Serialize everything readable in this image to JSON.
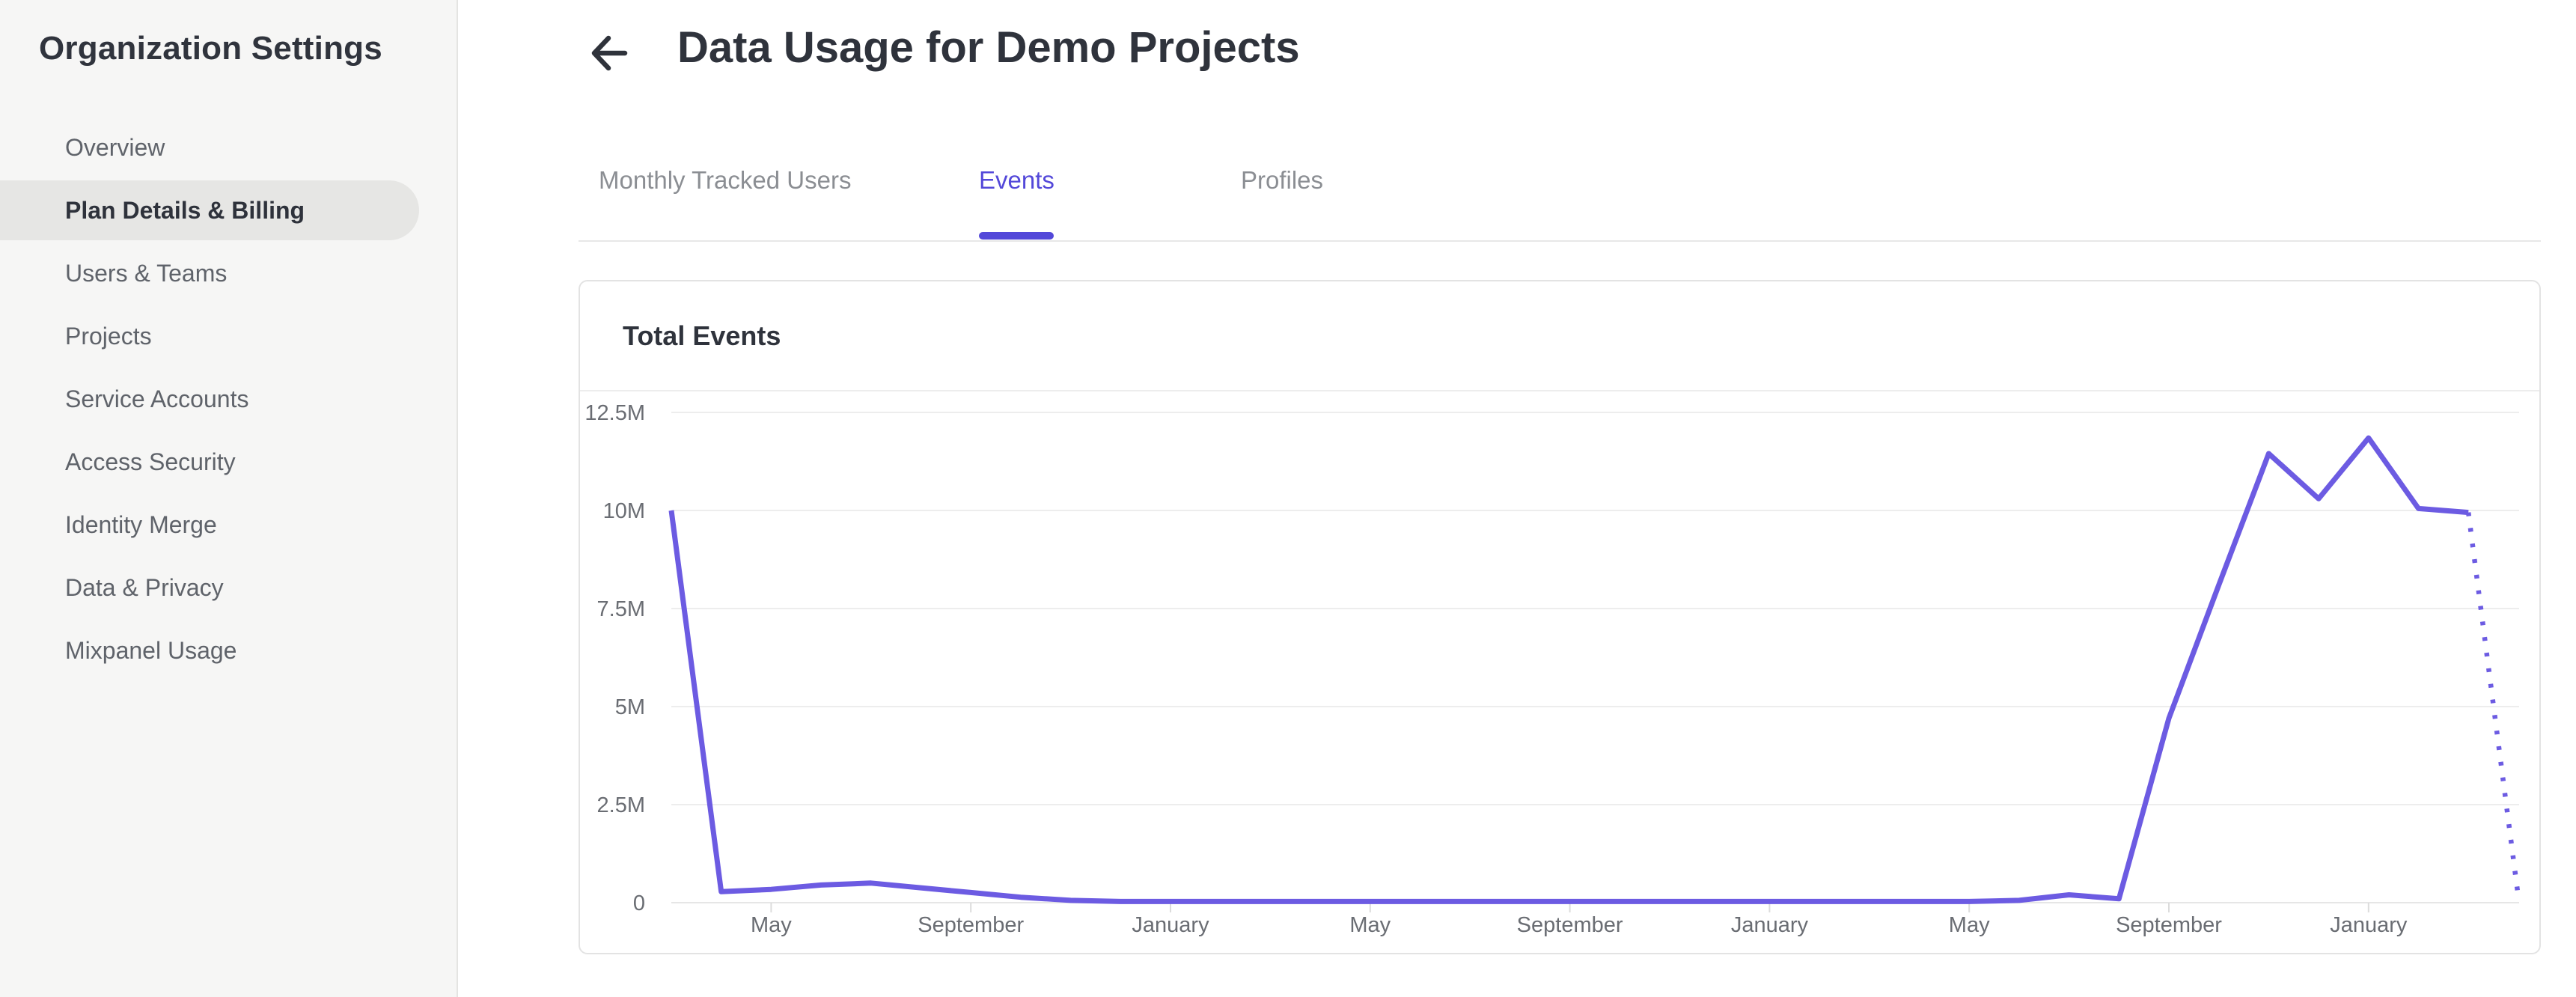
{
  "sidebar": {
    "title": "Organization Settings",
    "items": [
      {
        "label": "Overview",
        "selected": false
      },
      {
        "label": "Plan Details & Billing",
        "selected": true
      },
      {
        "label": "Users & Teams",
        "selected": false
      },
      {
        "label": "Projects",
        "selected": false
      },
      {
        "label": "Service Accounts",
        "selected": false
      },
      {
        "label": "Access Security",
        "selected": false
      },
      {
        "label": "Identity Merge",
        "selected": false
      },
      {
        "label": "Data & Privacy",
        "selected": false
      },
      {
        "label": "Mixpanel Usage",
        "selected": false
      }
    ]
  },
  "header": {
    "back_icon": "left-arrow",
    "title": "Data Usage for Demo Projects"
  },
  "tabs": [
    {
      "label": "Monthly Tracked Users",
      "active": false
    },
    {
      "label": "Events",
      "active": true
    },
    {
      "label": "Profiles",
      "active": false
    }
  ],
  "card": {
    "title": "Total Events"
  },
  "colors": {
    "accent_purple": "#5348d9",
    "chart_line": "#6c5be2",
    "sidebar_bg": "#f6f6f5",
    "selected_pill": "#e6e6e4",
    "dark_text": "#2f333c",
    "gray_text": "#5f636a",
    "tab_inactive": "#8b8e93",
    "gridline": "#ededed",
    "axis_label": "#6a6d73",
    "card_border": "#e3e3e3"
  },
  "chart_data": {
    "type": "line",
    "title": "Total Events",
    "xlabel": "",
    "ylabel": "",
    "grid": "horizontal",
    "legend": "none",
    "y_tick_labels": [
      "12.5M",
      "10M",
      "7.5M",
      "5M",
      "2.5M",
      "0"
    ],
    "y_axis_range_millions": [
      0,
      12.5
    ],
    "x_tick_labels": [
      "May",
      "September",
      "January",
      "May",
      "September",
      "January",
      "May",
      "September",
      "January"
    ],
    "x_tick_point_indices": [
      2,
      6,
      10,
      14,
      18,
      22,
      26,
      30,
      34
    ],
    "final_segment_style": "dotted (incomplete current period)",
    "points": [
      {
        "month": "Mar",
        "value_millions": 10
      },
      {
        "month": "Apr",
        "value_millions": 0.28
      },
      {
        "month": "May",
        "value_millions": 0.34
      },
      {
        "month": "Jun",
        "value_millions": 0.45
      },
      {
        "month": "Jul",
        "value_millions": 0.5
      },
      {
        "month": "Aug",
        "value_millions": 0.38
      },
      {
        "month": "Sep",
        "value_millions": 0.26
      },
      {
        "month": "Oct",
        "value_millions": 0.14
      },
      {
        "month": "Nov",
        "value_millions": 0.06
      },
      {
        "month": "Dec",
        "value_millions": 0.03
      },
      {
        "month": "Jan",
        "value_millions": 0.03
      },
      {
        "month": "Feb",
        "value_millions": 0.03
      },
      {
        "month": "Mar",
        "value_millions": 0.03
      },
      {
        "month": "Apr",
        "value_millions": 0.03
      },
      {
        "month": "May",
        "value_millions": 0.03
      },
      {
        "month": "Jun",
        "value_millions": 0.03
      },
      {
        "month": "Jul",
        "value_millions": 0.03
      },
      {
        "month": "Aug",
        "value_millions": 0.03
      },
      {
        "month": "Sep",
        "value_millions": 0.03
      },
      {
        "month": "Oct",
        "value_millions": 0.03
      },
      {
        "month": "Nov",
        "value_millions": 0.03
      },
      {
        "month": "Dec",
        "value_millions": 0.03
      },
      {
        "month": "Jan",
        "value_millions": 0.03
      },
      {
        "month": "Feb",
        "value_millions": 0.03
      },
      {
        "month": "Mar",
        "value_millions": 0.03
      },
      {
        "month": "Apr",
        "value_millions": 0.03
      },
      {
        "month": "May",
        "value_millions": 0.03
      },
      {
        "month": "Jun",
        "value_millions": 0.06
      },
      {
        "month": "Jul",
        "value_millions": 0.2
      },
      {
        "month": "Aug",
        "value_millions": 0.1
      },
      {
        "month": "Sep",
        "value_millions": 4.7
      },
      {
        "month": "Oct",
        "value_millions": 8.1
      },
      {
        "month": "Nov",
        "value_millions": 11.45
      },
      {
        "month": "Dec",
        "value_millions": 10.3
      },
      {
        "month": "Jan",
        "value_millions": 11.85
      },
      {
        "month": "Feb",
        "value_millions": 10.05
      },
      {
        "month": "Mar",
        "value_millions": 9.95
      },
      {
        "month": "Apr",
        "value_millions": 0.15,
        "projected": true
      }
    ]
  }
}
